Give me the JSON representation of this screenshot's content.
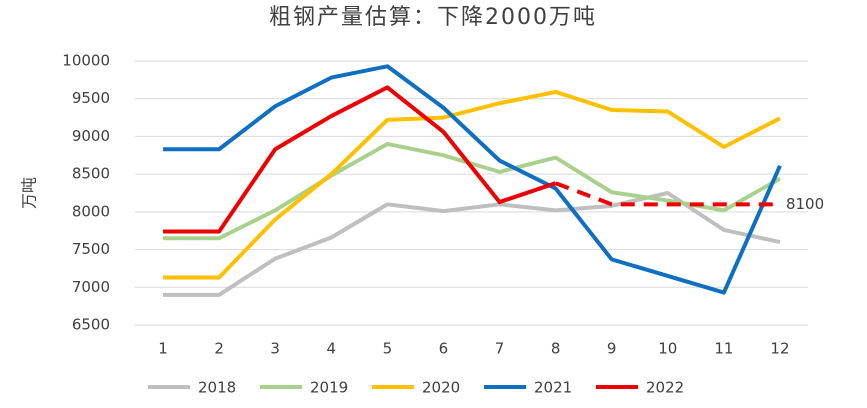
{
  "chart_data": {
    "type": "line",
    "title": "粗钢产量估算：下降2000万吨",
    "y_label": "万吨",
    "x": [
      1,
      2,
      3,
      4,
      5,
      6,
      7,
      8,
      9,
      10,
      11,
      12
    ],
    "xlim": [
      0.5,
      12.5
    ],
    "xticks": [
      1,
      2,
      3,
      4,
      5,
      6,
      7,
      8,
      9,
      10,
      11,
      12
    ],
    "ylim": [
      6500,
      10000
    ],
    "yticks": [
      6500,
      7000,
      7500,
      8000,
      8500,
      9000,
      9500,
      10000
    ],
    "grid": true,
    "legend": "bottom",
    "series": [
      {
        "name": "2018",
        "color": "#bfbfbf",
        "values": [
          6900,
          6900,
          7380,
          7660,
          8100,
          8010,
          8100,
          8020,
          8080,
          8250,
          7760,
          7600
        ]
      },
      {
        "name": "2019",
        "color": "#a9d18e",
        "values": [
          7650,
          7650,
          8020,
          8480,
          8900,
          8750,
          8530,
          8720,
          8260,
          8150,
          8020,
          8440
        ]
      },
      {
        "name": "2020",
        "color": "#ffc000",
        "values": [
          7130,
          7130,
          7900,
          8500,
          9220,
          9250,
          9440,
          9590,
          9350,
          9330,
          8860,
          9240
        ]
      },
      {
        "name": "2021",
        "color": "#0f6fc0",
        "values": [
          8830,
          8830,
          9400,
          9780,
          9930,
          9380,
          8680,
          8310,
          7370,
          7150,
          6930,
          8610
        ]
      },
      {
        "name": "2022",
        "color": "#ee0000",
        "values": [
          7740,
          7740,
          8830,
          9270,
          9650,
          9060,
          8130,
          8380,
          8100,
          8100,
          8100,
          8100
        ],
        "dashed_after": 8
      }
    ]
  }
}
